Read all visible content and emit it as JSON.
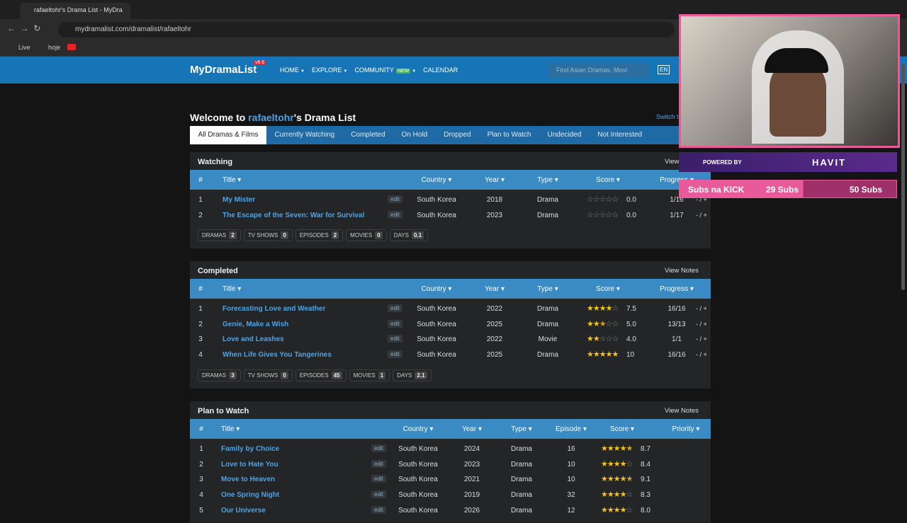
{
  "browser": {
    "tab_title": "rafaeltohr's Drama List - MyDra",
    "url": "mydramalist.com/dramalist/rafaeltohr",
    "bookmarks": [
      "Live",
      "hoje"
    ]
  },
  "nav": {
    "logo": "MyDramaList",
    "version": "v6.6",
    "items": [
      "HOME",
      "EXPLORE",
      "COMMUNITY",
      "CALENDAR"
    ],
    "new_badge": "NEW",
    "search_placeholder": "Find Asian Dramas, Movi",
    "lang": "EN"
  },
  "page": {
    "welcome_prefix": "Welcome to ",
    "user": "rafaeltohr",
    "welcome_suffix": "'s Drama List",
    "switch": "Switch t",
    "tabs": [
      "All Dramas & Films",
      "Currently Watching",
      "Completed",
      "On Hold",
      "Dropped",
      "Plan to Watch",
      "Undecided",
      "Not Interested"
    ],
    "edit_label": "edit",
    "adjust_label": "- / +",
    "view_notes": "View Notes"
  },
  "sections": [
    {
      "title": "Watching",
      "headers": [
        "#",
        "Title",
        "Country",
        "Year",
        "Type",
        "Score",
        "Progress"
      ],
      "rows": [
        [
          1,
          "My Mister",
          "South Korea",
          2018,
          "Drama",
          "0.0",
          "1/16"
        ],
        [
          2,
          "The Escape of the Seven: War for Survival",
          "South Korea",
          2023,
          "Drama",
          "0.0",
          "1/17"
        ]
      ],
      "stats": [
        [
          "DRAMAS",
          2
        ],
        [
          "TV SHOWS",
          0
        ],
        [
          "EPISODES",
          2
        ],
        [
          "MOVIES",
          0
        ],
        [
          "DAYS",
          0.1
        ]
      ]
    },
    {
      "title": "Completed",
      "headers": [
        "#",
        "Title",
        "Country",
        "Year",
        "Type",
        "Score",
        "Progress"
      ],
      "rows": [
        [
          1,
          "Forecasting Love and Weather",
          "South Korea",
          2022,
          "Drama",
          "7.5",
          "16/16"
        ],
        [
          2,
          "Genie, Make a Wish",
          "South Korea",
          2025,
          "Drama",
          "5.0",
          "13/13"
        ],
        [
          3,
          "Love and Leashes",
          "South Korea",
          2022,
          "Movie",
          "4.0",
          "1/1"
        ],
        [
          4,
          "When Life Gives You Tangerines",
          "South Korea",
          2025,
          "Drama",
          "10",
          "16/16"
        ]
      ],
      "stats": [
        [
          "DRAMAS",
          3
        ],
        [
          "TV SHOWS",
          0
        ],
        [
          "EPISODES",
          45
        ],
        [
          "MOVIES",
          1
        ],
        [
          "DAYS",
          2.1
        ]
      ]
    },
    {
      "title": "Plan to Watch",
      "headers": [
        "#",
        "Title",
        "Country",
        "Year",
        "Type",
        "Episode",
        "Score",
        "Priority"
      ],
      "rows": [
        [
          1,
          "Family by Choice",
          "South Korea",
          2024,
          "Drama",
          16,
          "8.7"
        ],
        [
          2,
          "Love to Hate You",
          "South Korea",
          2023,
          "Drama",
          10,
          "8.4"
        ],
        [
          3,
          "Move to Heaven",
          "South Korea",
          2021,
          "Drama",
          10,
          "9.1"
        ],
        [
          4,
          "One Spring Night",
          "South Korea",
          2019,
          "Drama",
          32,
          "8.3"
        ],
        [
          5,
          "Our Universe",
          "South Korea",
          2026,
          "Drama",
          12,
          "8.0"
        ]
      ],
      "stats": []
    }
  ],
  "overlay": {
    "powered_by": "POWERED BY",
    "brand": "HAVIT",
    "kick": "Subs na KICK",
    "current": "29 Subs",
    "goal": "50 Subs"
  }
}
